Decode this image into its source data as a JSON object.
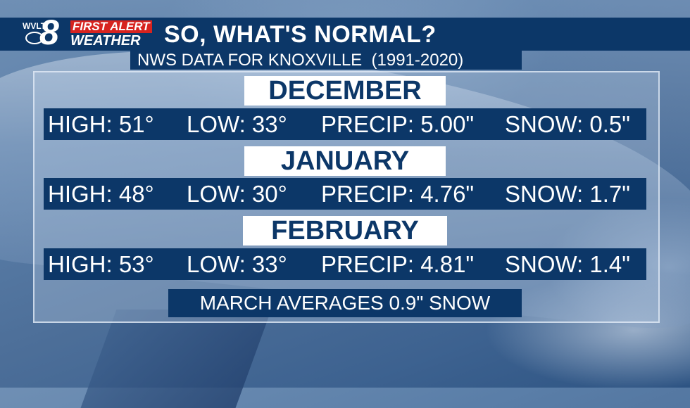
{
  "logo": {
    "station": "WVLT",
    "channel": "8",
    "badge": "FIRST ALERT",
    "brand": "WEATHER"
  },
  "header": {
    "title": "SO, WHAT'S NORMAL?",
    "subtitle": "NWS DATA FOR KNOXVILLE  (1991-2020)"
  },
  "months": [
    {
      "name": "DECEMBER",
      "high": "HIGH: 51°",
      "low": "LOW: 33°",
      "precip": "PRECIP: 5.00\"",
      "snow": "SNOW: 0.5\""
    },
    {
      "name": "JANUARY",
      "high": "HIGH: 48°",
      "low": "LOW: 30°",
      "precip": "PRECIP: 4.76\"",
      "snow": "SNOW: 1.7\""
    },
    {
      "name": "FEBRUARY",
      "high": "HIGH: 53°",
      "low": "LOW: 33°",
      "precip": "PRECIP: 4.81\"",
      "snow": "SNOW: 1.4\""
    }
  ],
  "footnote": "MARCH AVERAGES 0.9\" SNOW",
  "colors": {
    "navy": "#0c3768",
    "alert_red": "#d7231f",
    "label_bg": "#ffffff"
  }
}
